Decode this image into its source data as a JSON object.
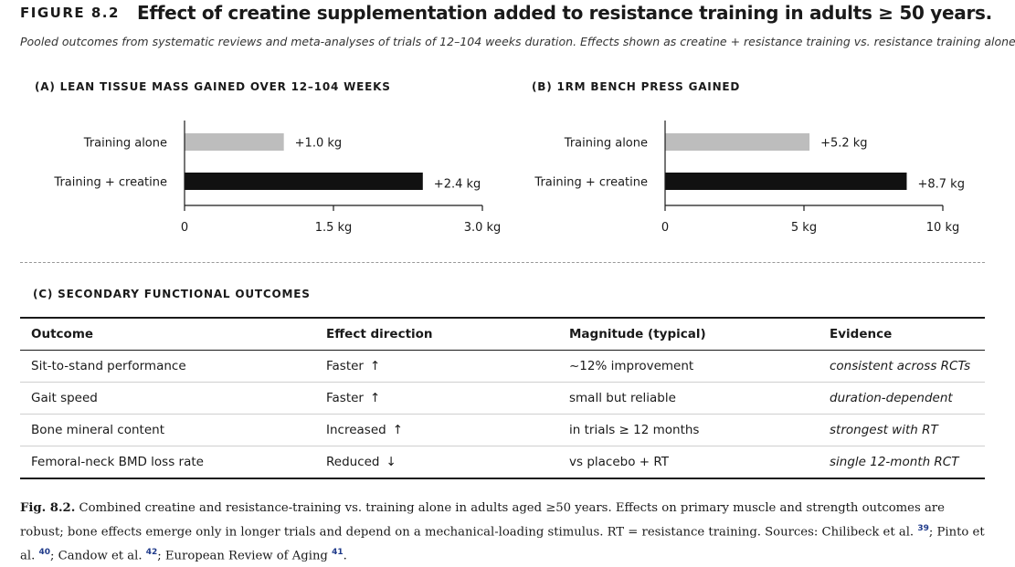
{
  "figure": {
    "label": "FIGURE 8.2",
    "title": "Effect of creatine supplementation added to resistance training in adults ≥ 50 years.",
    "subtitle": "Pooled outcomes from systematic reviews and meta-analyses of trials of 12–104 weeks duration. Effects shown as creatine + resistance training vs. resistance training alone."
  },
  "colors": {
    "training_alone": "#bdbdbd",
    "training_creatine": "#111111",
    "axis": "#1a1a1a",
    "citation": "#1f3a8a"
  },
  "chart_data": [
    {
      "id": "A",
      "heading": "(A) LEAN TISSUE MASS GAINED OVER 12–104 WEEKS",
      "type": "bar",
      "orientation": "horizontal",
      "categories": [
        "Training alone",
        "Training + creatine"
      ],
      "values": [
        1.0,
        2.4
      ],
      "value_labels": [
        "+1.0 kg",
        "+2.4 kg"
      ],
      "bar_colors": [
        "#bdbdbd",
        "#111111"
      ],
      "xlim": [
        0,
        3.0
      ],
      "xticks": [
        0,
        1.5,
        3.0
      ],
      "xtick_labels": [
        "0",
        "1.5 kg",
        "3.0 kg"
      ],
      "xlabel": "",
      "ylabel": "",
      "title": "",
      "grid": false
    },
    {
      "id": "B",
      "heading": "(B) 1RM BENCH PRESS GAINED",
      "type": "bar",
      "orientation": "horizontal",
      "categories": [
        "Training alone",
        "Training + creatine"
      ],
      "values": [
        5.2,
        8.7
      ],
      "value_labels": [
        "+5.2 kg",
        "+8.7 kg"
      ],
      "bar_colors": [
        "#bdbdbd",
        "#111111"
      ],
      "xlim": [
        0,
        10
      ],
      "xticks": [
        0,
        5,
        10
      ],
      "xtick_labels": [
        "0",
        "5 kg",
        "10 kg"
      ],
      "xlabel": "",
      "ylabel": "",
      "title": "",
      "grid": false
    }
  ],
  "panelC": {
    "heading": "(C) SECONDARY FUNCTIONAL OUTCOMES",
    "columns": [
      "Outcome",
      "Effect direction",
      "Magnitude (typical)",
      "Evidence"
    ],
    "rows": [
      {
        "outcome": "Sit-to-stand performance",
        "effect": "Faster",
        "arrow": "↑",
        "magnitude": "~12% improvement",
        "evidence": "consistent across RCTs"
      },
      {
        "outcome": "Gait speed",
        "effect": "Faster",
        "arrow": "↑",
        "magnitude": "small but reliable",
        "evidence": "duration-dependent"
      },
      {
        "outcome": "Bone mineral content",
        "effect": "Increased",
        "arrow": "↑",
        "magnitude": "in trials ≥ 12 months",
        "evidence": "strongest with RT"
      },
      {
        "outcome": "Femoral-neck BMD loss rate",
        "effect": "Reduced",
        "arrow": "↓",
        "magnitude": "vs placebo + RT",
        "evidence": "single 12-month RCT"
      }
    ]
  },
  "caption": {
    "label": "Fig. 8.2.",
    "text1": "Combined creatine and resistance-training vs. training alone in adults aged ≥50 years. Effects on primary muscle and strength outcomes are robust; bone effects emerge only in longer trials and depend on a mechanical-loading stimulus. RT = resistance training. Sources: Chilibeck et al.",
    "cite1": "39",
    "text2": "; Pinto et al.",
    "cite2": "40",
    "text3": "; Candow et al.",
    "cite3": "42",
    "text4": "; European Review of Aging",
    "cite4": "41",
    "text5": "."
  }
}
